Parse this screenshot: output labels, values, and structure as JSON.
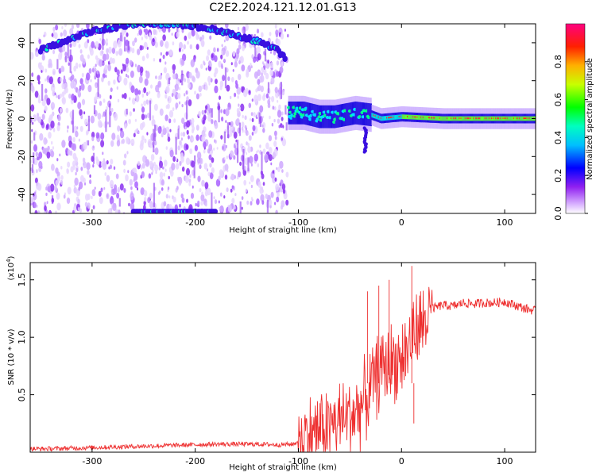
{
  "title": "C2E2.2024.121.12.01.G13",
  "chart_data": [
    {
      "type": "heatmap",
      "xlabel": "Height of straight line (km)",
      "ylabel": "Frequency (Hz)",
      "xlim": [
        -360,
        130
      ],
      "ylim": [
        -50,
        50
      ],
      "xticks": [
        -300,
        -200,
        -100,
        0,
        100
      ],
      "yticks": [
        -40,
        -20,
        0,
        20,
        40
      ],
      "colorbar": {
        "label": "Normalized spectral amplitude",
        "range": [
          0,
          1
        ],
        "ticks": [
          0.0,
          0.2,
          0.4,
          0.6,
          0.8
        ],
        "colors": [
          "#ffffff",
          "#c080ff",
          "#0000ff",
          "#00ffff",
          "#00ff00",
          "#ffff00",
          "#ff0000",
          "#ff0080"
        ]
      },
      "features": {
        "broadband_region_km": [
          -360,
          -110
        ],
        "upper_trace": [
          [
            -350,
            36
          ],
          [
            -330,
            40
          ],
          [
            -300,
            46
          ],
          [
            -260,
            50
          ],
          [
            -220,
            50
          ],
          [
            -190,
            48
          ],
          [
            -160,
            44
          ],
          [
            -135,
            40
          ],
          [
            -120,
            36
          ],
          [
            -112,
            31
          ]
        ],
        "lower_trace_km": [
          -260,
          -180
        ],
        "tone_trace": [
          [
            -110,
            3
          ],
          [
            -95,
            3
          ],
          [
            -80,
            1
          ],
          [
            -65,
            1
          ],
          [
            -45,
            3
          ],
          [
            -30,
            2
          ],
          [
            -20,
            0
          ],
          [
            0,
            1
          ],
          [
            40,
            0
          ],
          [
            130,
            0
          ]
        ]
      }
    },
    {
      "type": "line",
      "xlabel": "Height of straight line (km)",
      "ylabel": "SNR (10 * v/v)",
      "ylabel_scale": "(x10",
      "ylabel_exponent": "4",
      "xlim": [
        -360,
        130
      ],
      "ylim": [
        0,
        1.65
      ],
      "xticks": [
        -300,
        -200,
        -100,
        0,
        100
      ],
      "yticks": [
        0.5,
        1.0,
        1.5
      ],
      "color": "#ee3030",
      "series": [
        {
          "x": [
            -360,
            -340,
            -320,
            -300,
            -280,
            -260,
            -240,
            -220,
            -200,
            -180,
            -160,
            -140,
            -120,
            -105,
            -95,
            -85,
            -75,
            -65,
            -55,
            -45,
            -35,
            -28,
            -20,
            -12,
            -5,
            0,
            5,
            10,
            15,
            20,
            25,
            30,
            40,
            50,
            60,
            70,
            80,
            90,
            100,
            110,
            120,
            130
          ],
          "y": [
            0.03,
            0.03,
            0.035,
            0.04,
            0.045,
            0.05,
            0.055,
            0.06,
            0.065,
            0.07,
            0.07,
            0.07,
            0.065,
            0.07,
            0.12,
            0.18,
            0.22,
            0.25,
            0.3,
            0.35,
            0.45,
            0.6,
            0.72,
            0.78,
            0.8,
            0.82,
            0.88,
            1.0,
            1.05,
            1.1,
            1.18,
            1.25,
            1.28,
            1.27,
            1.3,
            1.29,
            1.3,
            1.3,
            1.31,
            1.28,
            1.25,
            1.23
          ]
        }
      ]
    }
  ]
}
